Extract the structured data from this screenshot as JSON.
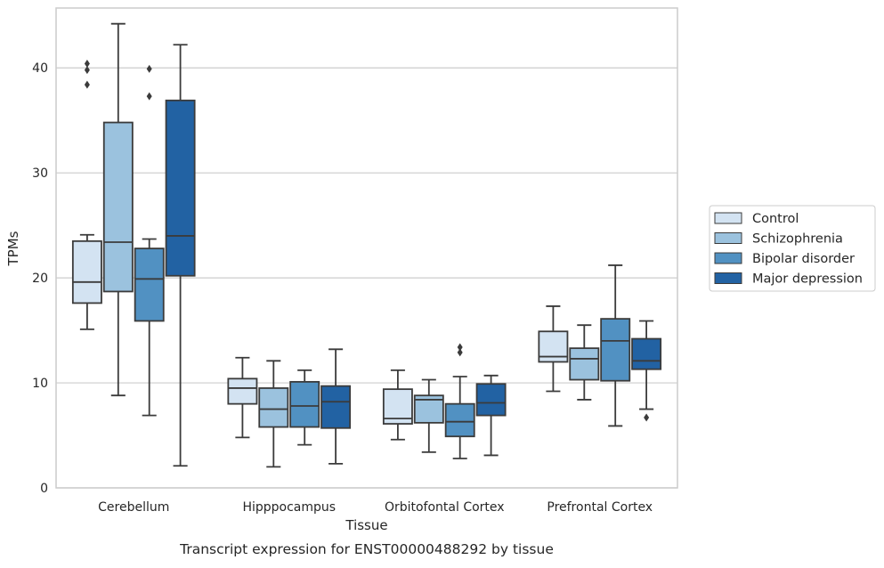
{
  "chart_data": {
    "type": "boxplot",
    "title": "",
    "caption": "Transcript expression for ENST00000488292 by tissue",
    "xlabel": "Tissue",
    "ylabel": "TPMs",
    "ylim": [
      0,
      45.7
    ],
    "yticks": [
      0,
      10,
      20,
      30,
      40
    ],
    "grid": "horizontal",
    "legend_position": "right",
    "categories": [
      "Cerebellum",
      "Hipppocampus",
      "Orbitofontal Cortex",
      "Prefrontal Cortex"
    ],
    "series": [
      {
        "name": "Control",
        "color": "#d3e3f2",
        "boxes": [
          {
            "whislo": 15.1,
            "q1": 17.6,
            "med": 19.6,
            "q3": 23.5,
            "whishi": 24.1,
            "fliers": [
              38.4,
              39.8,
              40.4
            ]
          },
          {
            "whislo": 4.8,
            "q1": 8.0,
            "med": 9.5,
            "q3": 10.4,
            "whishi": 12.4,
            "fliers": []
          },
          {
            "whislo": 4.6,
            "q1": 6.1,
            "med": 6.6,
            "q3": 9.4,
            "whishi": 11.2,
            "fliers": []
          },
          {
            "whislo": 9.2,
            "q1": 12.0,
            "med": 12.5,
            "q3": 14.9,
            "whishi": 17.3,
            "fliers": []
          }
        ]
      },
      {
        "name": "Schizophrenia",
        "color": "#9bc2de",
        "boxes": [
          {
            "whislo": 8.8,
            "q1": 18.7,
            "med": 23.4,
            "q3": 34.8,
            "whishi": 44.2,
            "fliers": []
          },
          {
            "whislo": 2.0,
            "q1": 5.8,
            "med": 7.5,
            "q3": 9.5,
            "whishi": 12.1,
            "fliers": []
          },
          {
            "whislo": 3.4,
            "q1": 6.2,
            "med": 8.4,
            "q3": 8.8,
            "whishi": 10.3,
            "fliers": []
          },
          {
            "whislo": 8.4,
            "q1": 10.3,
            "med": 12.3,
            "q3": 13.3,
            "whishi": 15.5,
            "fliers": []
          }
        ]
      },
      {
        "name": "Bipolar disorder",
        "color": "#5191c2",
        "boxes": [
          {
            "whislo": 6.9,
            "q1": 15.9,
            "med": 19.9,
            "q3": 22.8,
            "whishi": 23.7,
            "fliers": [
              37.3,
              39.9
            ]
          },
          {
            "whislo": 4.1,
            "q1": 5.8,
            "med": 7.8,
            "q3": 10.1,
            "whishi": 11.2,
            "fliers": []
          },
          {
            "whislo": 2.8,
            "q1": 4.9,
            "med": 6.3,
            "q3": 8.0,
            "whishi": 10.6,
            "fliers": [
              12.9,
              13.4
            ]
          },
          {
            "whislo": 5.9,
            "q1": 10.2,
            "med": 14.0,
            "q3": 16.1,
            "whishi": 21.2,
            "fliers": []
          }
        ]
      },
      {
        "name": "Major depression",
        "color": "#2262a3",
        "boxes": [
          {
            "whislo": 2.1,
            "q1": 20.2,
            "med": 24.0,
            "q3": 36.9,
            "whishi": 42.2,
            "fliers": []
          },
          {
            "whislo": 2.3,
            "q1": 5.7,
            "med": 8.2,
            "q3": 9.7,
            "whishi": 13.2,
            "fliers": []
          },
          {
            "whislo": 3.1,
            "q1": 6.9,
            "med": 8.1,
            "q3": 9.9,
            "whishi": 10.7,
            "fliers": []
          },
          {
            "whislo": 7.5,
            "q1": 11.3,
            "med": 12.1,
            "q3": 14.2,
            "whishi": 15.9,
            "fliers": [
              6.7
            ]
          }
        ]
      }
    ]
  }
}
